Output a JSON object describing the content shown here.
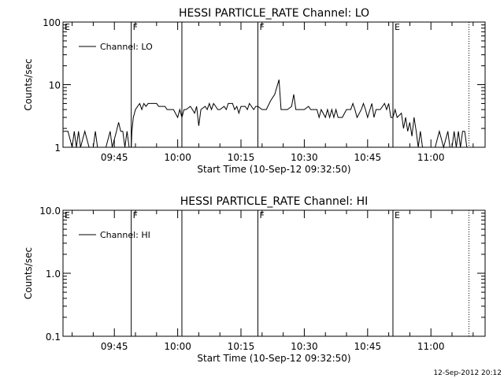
{
  "footer": {
    "timestamp": "12-Sep-2012 20:12"
  },
  "chart_data": [
    {
      "type": "line",
      "title": "HESSI PARTICLE_RATE Channel: LO",
      "xlabel": "Start Time (10-Sep-12 09:32:50)",
      "ylabel": "Counts/sec",
      "yscale": "log",
      "ylim": [
        1,
        100
      ],
      "y_ticks": [
        {
          "value": 1,
          "label": "1"
        },
        {
          "value": 10,
          "label": "10"
        },
        {
          "value": 100,
          "label": "100"
        }
      ],
      "xlim": [
        "09:32:50",
        "11:12:50"
      ],
      "x_ticks": [
        "09:45",
        "10:00",
        "10:15",
        "10:30",
        "10:45",
        "11:00"
      ],
      "legend": {
        "position": "top-left",
        "entries": [
          "Channel: LO"
        ]
      },
      "annotations": [
        {
          "text": "E",
          "time": "09:32:50",
          "line": "none"
        },
        {
          "text": "F",
          "time": "09:49:00",
          "line": "solid"
        },
        {
          "text": "",
          "time": "10:01:00",
          "line": "solid"
        },
        {
          "text": "F",
          "time": "10:19:00",
          "line": "solid"
        },
        {
          "text": "E",
          "time": "10:51:00",
          "line": "solid"
        },
        {
          "text": "",
          "time": "11:09:00",
          "line": "dotted"
        }
      ],
      "series": [
        {
          "name": "Channel: LO",
          "segments": [
            [
              [
                "09:32:50",
                1.8
              ],
              [
                "09:34:00",
                1.8
              ],
              [
                "09:35:00",
                1.0
              ],
              [
                "09:35:30",
                1.8
              ],
              [
                "09:36:00",
                1.0
              ],
              [
                "09:36:30",
                1.8
              ],
              [
                "09:37:00",
                1.0
              ],
              [
                "09:38:00",
                1.8
              ],
              [
                "09:39:00",
                1.0
              ],
              [
                "09:40:00",
                1.0
              ],
              [
                "09:40:30",
                1.8
              ],
              [
                "09:41:00",
                1.0
              ],
              [
                "09:42:00",
                1.0
              ],
              [
                "09:43:00",
                1.0
              ],
              [
                "09:44:00",
                1.8
              ],
              [
                "09:44:30",
                1.0
              ],
              [
                "09:45:30",
                1.8
              ],
              [
                "09:46:00",
                2.5
              ],
              [
                "09:46:30",
                1.8
              ],
              [
                "09:47:00",
                1.8
              ],
              [
                "09:47:30",
                1.0
              ],
              [
                "09:48:00",
                1.8
              ],
              [
                "09:48:30",
                1.0
              ],
              [
                "09:49:00",
                1.0
              ],
              [
                "09:49:10",
                1.8
              ],
              [
                "09:49:30",
                3.0
              ],
              [
                "09:50:00",
                4.0
              ],
              [
                "09:50:30",
                4.5
              ],
              [
                "09:51:00",
                5.0
              ],
              [
                "09:51:30",
                4.0
              ],
              [
                "09:52:00",
                5.0
              ],
              [
                "09:52:30",
                4.5
              ],
              [
                "09:53:00",
                5.0
              ],
              [
                "09:55:00",
                5.0
              ],
              [
                "09:55:30",
                4.5
              ],
              [
                "09:57:00",
                4.5
              ],
              [
                "09:57:30",
                4.0
              ],
              [
                "09:59:00",
                4.0
              ],
              [
                "10:00:00",
                3.0
              ],
              [
                "10:00:30",
                4.0
              ],
              [
                "10:01:00",
                3.0
              ],
              [
                "10:01:30",
                4.0
              ],
              [
                "10:02:00",
                4.0
              ],
              [
                "10:03:00",
                4.5
              ],
              [
                "10:03:30",
                4.0
              ],
              [
                "10:04:00",
                3.5
              ],
              [
                "10:04:30",
                4.5
              ],
              [
                "10:05:00",
                2.2
              ],
              [
                "10:05:30",
                4.0
              ],
              [
                "10:06:30",
                4.5
              ],
              [
                "10:07:00",
                4.0
              ],
              [
                "10:07:30",
                5.0
              ],
              [
                "10:08:00",
                4.0
              ],
              [
                "10:08:30",
                5.0
              ],
              [
                "10:09:00",
                4.5
              ],
              [
                "10:09:30",
                4.0
              ],
              [
                "10:10:00",
                4.0
              ],
              [
                "10:11:00",
                4.5
              ],
              [
                "10:11:30",
                4.0
              ],
              [
                "10:12:00",
                5.0
              ],
              [
                "10:13:00",
                5.0
              ],
              [
                "10:13:30",
                4.0
              ],
              [
                "10:14:00",
                4.5
              ],
              [
                "10:14:30",
                3.5
              ],
              [
                "10:15:00",
                4.5
              ],
              [
                "10:16:00",
                4.5
              ],
              [
                "10:16:30",
                4.0
              ],
              [
                "10:17:00",
                5.0
              ],
              [
                "10:18:00",
                4.0
              ],
              [
                "10:18:30",
                4.5
              ],
              [
                "10:19:00",
                4.5
              ],
              [
                "10:20:00",
                4.0
              ],
              [
                "10:21:00",
                4.0
              ],
              [
                "10:22:00",
                5.5
              ],
              [
                "10:23:00",
                7.0
              ],
              [
                "10:24:00",
                12.0
              ],
              [
                "10:24:30",
                4.0
              ],
              [
                "10:25:00",
                4.0
              ],
              [
                "10:26:00",
                4.0
              ],
              [
                "10:27:00",
                4.5
              ],
              [
                "10:27:30",
                7.0
              ],
              [
                "10:28:00",
                4.0
              ],
              [
                "10:29:00",
                4.0
              ],
              [
                "10:30:00",
                4.0
              ],
              [
                "10:31:00",
                4.5
              ],
              [
                "10:31:30",
                4.0
              ],
              [
                "10:33:00",
                4.0
              ],
              [
                "10:33:30",
                3.0
              ],
              [
                "10:34:00",
                4.0
              ],
              [
                "10:35:00",
                3.0
              ],
              [
                "10:35:30",
                4.0
              ],
              [
                "10:36:00",
                3.0
              ],
              [
                "10:36:30",
                4.0
              ],
              [
                "10:37:00",
                3.0
              ],
              [
                "10:37:30",
                4.0
              ],
              [
                "10:38:00",
                3.0
              ],
              [
                "10:39:00",
                3.0
              ],
              [
                "10:40:00",
                4.0
              ],
              [
                "10:41:00",
                4.0
              ],
              [
                "10:41:30",
                5.0
              ],
              [
                "10:42:00",
                4.0
              ],
              [
                "10:42:30",
                3.0
              ],
              [
                "10:43:30",
                4.0
              ],
              [
                "10:44:00",
                5.0
              ],
              [
                "10:44:30",
                4.0
              ],
              [
                "10:45:00",
                3.0
              ],
              [
                "10:46:00",
                5.0
              ],
              [
                "10:46:30",
                3.0
              ],
              [
                "10:47:00",
                4.0
              ],
              [
                "10:48:00",
                4.0
              ],
              [
                "10:49:00",
                5.0
              ],
              [
                "10:49:30",
                4.0
              ],
              [
                "10:50:00",
                5.0
              ],
              [
                "10:50:30",
                3.0
              ],
              [
                "10:51:00",
                3.0
              ],
              [
                "10:51:30",
                4.0
              ],
              [
                "10:52:00",
                3.0
              ],
              [
                "10:53:00",
                3.5
              ],
              [
                "10:53:30",
                2.0
              ],
              [
                "10:54:00",
                3.0
              ],
              [
                "10:54:30",
                1.8
              ],
              [
                "10:55:00",
                2.5
              ],
              [
                "10:55:30",
                1.5
              ],
              [
                "10:56:00",
                3.0
              ],
              [
                "10:56:30",
                1.8
              ],
              [
                "10:57:00",
                1.0
              ],
              [
                "10:57:30",
                1.8
              ],
              [
                "10:58:00",
                1.0
              ],
              [
                "11:00:00",
                1.0
              ],
              [
                "11:01:00",
                1.0
              ],
              [
                "11:02:00",
                1.8
              ],
              [
                "11:03:00",
                1.0
              ],
              [
                "11:04:00",
                1.8
              ],
              [
                "11:04:30",
                1.0
              ],
              [
                "11:05:00",
                1.0
              ],
              [
                "11:05:30",
                1.8
              ],
              [
                "11:06:00",
                1.0
              ],
              [
                "11:06:30",
                1.8
              ],
              [
                "11:07:00",
                1.0
              ],
              [
                "11:07:30",
                1.8
              ],
              [
                "11:08:00",
                1.8
              ],
              [
                "11:08:30",
                1.0
              ],
              [
                "11:09:00",
                1.0
              ]
            ]
          ]
        }
      ]
    },
    {
      "type": "line",
      "title": "HESSI PARTICLE_RATE Channel: HI",
      "xlabel": "Start Time (10-Sep-12 09:32:50)",
      "ylabel": "Counts/sec",
      "yscale": "log",
      "ylim": [
        0.1,
        10
      ],
      "y_ticks": [
        {
          "value": 0.1,
          "label": "0.1"
        },
        {
          "value": 1,
          "label": "1.0"
        },
        {
          "value": 10,
          "label": "10.0"
        }
      ],
      "xlim": [
        "09:32:50",
        "11:12:50"
      ],
      "x_ticks": [
        "09:45",
        "10:00",
        "10:15",
        "10:30",
        "10:45",
        "11:00"
      ],
      "legend": {
        "position": "top-left",
        "entries": [
          "Channel: HI"
        ]
      },
      "annotations": [
        {
          "text": "E",
          "time": "09:32:50",
          "line": "none"
        },
        {
          "text": "F",
          "time": "09:49:00",
          "line": "solid"
        },
        {
          "text": "",
          "time": "10:01:00",
          "line": "solid"
        },
        {
          "text": "F",
          "time": "10:19:00",
          "line": "solid"
        },
        {
          "text": "E",
          "time": "10:51:00",
          "line": "solid"
        },
        {
          "text": "",
          "time": "11:09:00",
          "line": "dotted"
        }
      ],
      "series": [
        {
          "name": "Channel: HI",
          "segments": []
        }
      ]
    }
  ]
}
